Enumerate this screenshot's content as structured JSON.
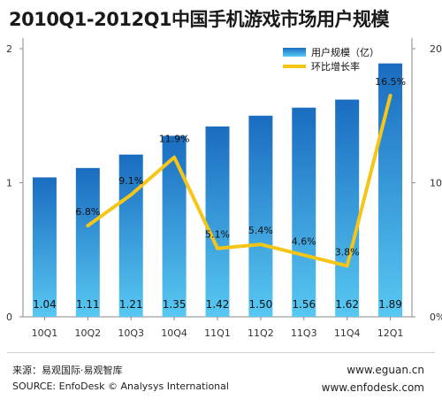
{
  "title": "2010Q1-2012Q1中国手机游戏市场用户规模",
  "chart_data": {
    "type": "bar+line",
    "categories": [
      "10Q1",
      "10Q2",
      "10Q3",
      "10Q4",
      "11Q1",
      "11Q2",
      "11Q3",
      "11Q4",
      "12Q1"
    ],
    "series": [
      {
        "name": "用户规模（亿）",
        "type": "bar",
        "axis": "left",
        "values": [
          1.04,
          1.11,
          1.21,
          1.35,
          1.42,
          1.5,
          1.56,
          1.62,
          1.89
        ],
        "labels": [
          "1.04",
          "1.11",
          "1.21",
          "1.35",
          "1.42",
          "1.50",
          "1.56",
          "1.62",
          "1.89"
        ]
      },
      {
        "name": "环比增长率",
        "type": "line",
        "axis": "right",
        "values": [
          null,
          6.8,
          9.1,
          11.9,
          5.1,
          5.4,
          4.6,
          3.8,
          16.5
        ],
        "labels": [
          "",
          "6.8%",
          "9.1%",
          "11.9%",
          "5.1%",
          "5.4%",
          "4.6%",
          "3.8%",
          "16.5%"
        ]
      }
    ],
    "y_left": {
      "range": [
        0,
        2
      ],
      "ticks": [
        "0",
        "1",
        "2"
      ]
    },
    "y_right": {
      "range": [
        0,
        20
      ],
      "ticks": [
        "0%",
        "10%",
        "20%"
      ]
    },
    "legend_position": "top-right",
    "grid": false,
    "colors": {
      "bar_top": "#1a6cc0",
      "bar_bottom": "#58c8f2",
      "line": "#f5c518"
    }
  },
  "footer": {
    "source_cn": "来源：易观国际·易观智库",
    "source_en": "SOURCE: EnfoDesk © Analysys International",
    "site1": "www.eguan.cn",
    "site2": "www.enfodesk.com"
  }
}
